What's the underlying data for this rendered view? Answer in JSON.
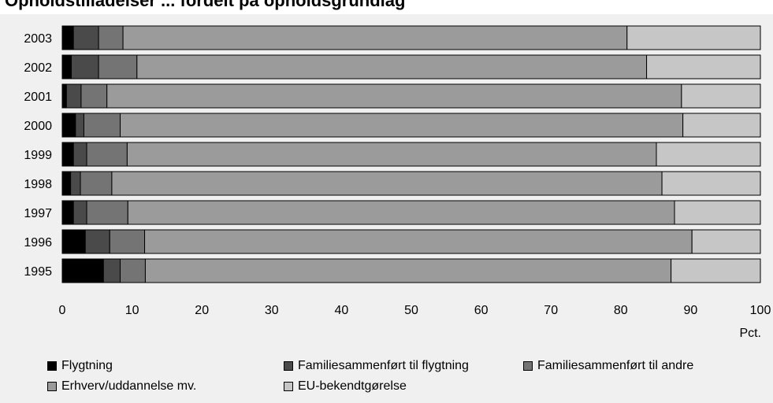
{
  "title": "Opholdstilladelser ... fordelt på opholdsgrundlag",
  "chart_data": {
    "type": "bar",
    "orientation": "horizontal",
    "stacked": true,
    "categories": [
      "2003",
      "2002",
      "2001",
      "2000",
      "1999",
      "1998",
      "1997",
      "1996",
      "1995"
    ],
    "series": [
      {
        "name": "Flygtning",
        "color": "#000000",
        "values": [
          1.6,
          1.3,
          0.6,
          1.9,
          1.6,
          1.2,
          1.6,
          3.3,
          5.9
        ]
      },
      {
        "name": "Familiesammenført til flygtning",
        "color": "#4a4a4a",
        "values": [
          3.6,
          3.9,
          2.1,
          1.2,
          1.9,
          1.4,
          1.9,
          3.5,
          2.4
        ]
      },
      {
        "name": "Familiesammenført til andre",
        "color": "#747474",
        "values": [
          3.5,
          5.5,
          3.7,
          5.2,
          5.8,
          4.5,
          5.9,
          5.0,
          3.6
        ]
      },
      {
        "name": "Erhverv/uddannelse mv.",
        "color": "#9b9b9b",
        "values": [
          72.2,
          73.0,
          82.3,
          80.6,
          75.8,
          78.8,
          78.3,
          78.4,
          75.3
        ]
      },
      {
        "name": "EU-bekendtgørelse",
        "color": "#c6c6c6",
        "values": [
          19.1,
          16.3,
          11.3,
          11.1,
          14.9,
          14.1,
          12.3,
          9.8,
          12.8
        ]
      }
    ],
    "xlim": [
      0,
      100
    ],
    "xticks": [
      "0",
      "10",
      "20",
      "30",
      "40",
      "50",
      "60",
      "70",
      "80",
      "90",
      "100"
    ],
    "xlabel": "Pct.",
    "ylabel": "",
    "grid": false,
    "legend_position": "bottom"
  }
}
